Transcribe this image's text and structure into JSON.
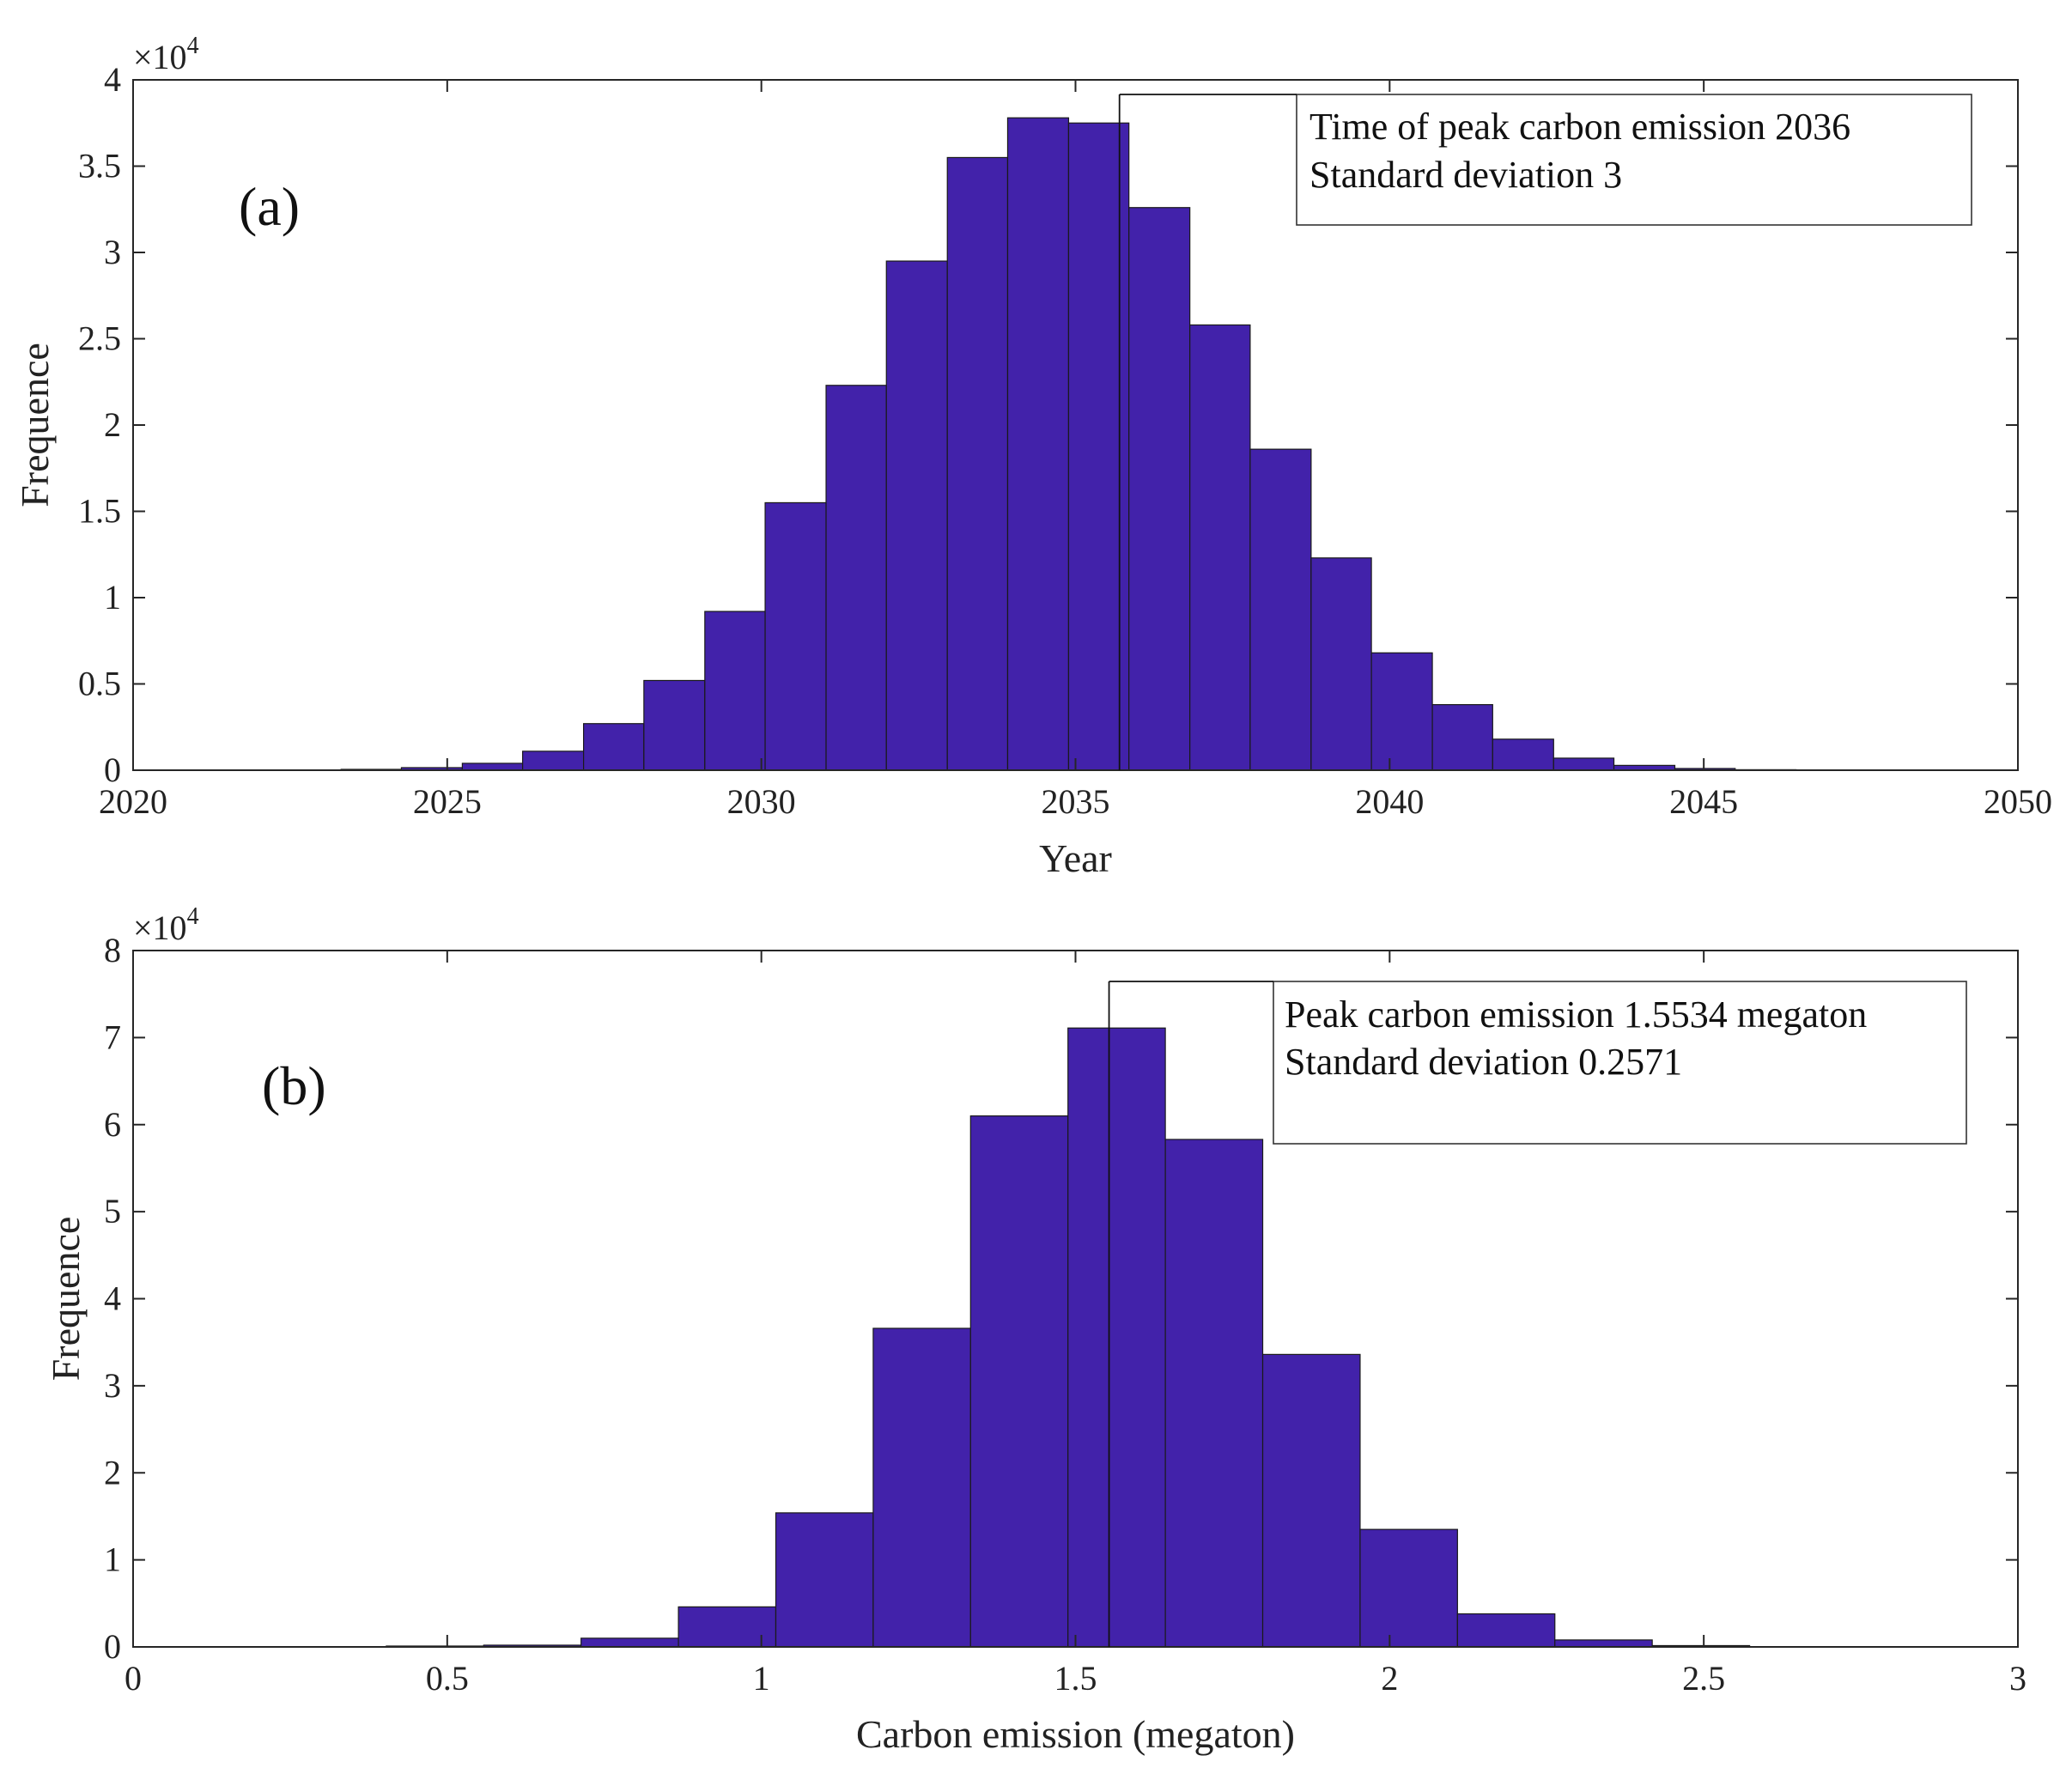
{
  "chart_data": [
    {
      "id": "a",
      "type": "bar",
      "panel_label": "(a)",
      "xlabel": "Year",
      "ylabel": "Frequence",
      "y_exponent_label": "×10",
      "y_exponent_power": "4",
      "xlim": [
        2020,
        2050
      ],
      "ylim": [
        0,
        40000
      ],
      "xticks": [
        2020,
        2025,
        2030,
        2035,
        2040,
        2045,
        2050
      ],
      "yticks": [
        0,
        5000,
        10000,
        15000,
        20000,
        25000,
        30000,
        35000,
        40000
      ],
      "ytick_labels": [
        "0",
        "0.5",
        "1",
        "1.5",
        "2",
        "2.5",
        "3",
        "3.5",
        "4"
      ],
      "bin_edges": [
        2019.45,
        2020.41,
        2021.38,
        2022.34,
        2023.31,
        2024.27,
        2025.24,
        2026.2,
        2027.17,
        2028.13,
        2029.1,
        2030.06,
        2031.03,
        2031.99,
        2032.96,
        2033.92,
        2034.89,
        2035.85,
        2036.82,
        2037.78,
        2038.75,
        2039.71,
        2040.68,
        2041.64,
        2042.61,
        2043.57,
        2044.54,
        2045.5,
        2046.47,
        2047.43,
        2048.4,
        2049.36
      ],
      "values": [
        0,
        0,
        0,
        20,
        50,
        150,
        400,
        1100,
        2700,
        5200,
        9200,
        15500,
        22300,
        29500,
        35500,
        37800,
        37500,
        32600,
        25800,
        18600,
        12300,
        6800,
        3800,
        1800,
        700,
        280,
        100,
        30,
        10,
        0,
        0
      ],
      "peak_x": 2035.7,
      "annotation": [
        "Time of peak carbon emission 2036",
        "Standard deviation 3"
      ],
      "bar_color": "#4222AA"
    },
    {
      "id": "b",
      "type": "bar",
      "panel_label": "(b)",
      "xlabel": "Carbon emission (megaton)",
      "ylabel": "Frequence",
      "y_exponent_label": "×10",
      "y_exponent_power": "4",
      "xlim": [
        0,
        3
      ],
      "ylim": [
        0,
        80000
      ],
      "xticks": [
        0,
        0.5,
        1,
        1.5,
        2,
        2.5,
        3
      ],
      "xtick_labels": [
        "0",
        "0.5",
        "1",
        "1.5",
        "2",
        "2.5",
        "3"
      ],
      "yticks": [
        0,
        10000,
        20000,
        30000,
        40000,
        50000,
        60000,
        70000,
        80000
      ],
      "ytick_labels": [
        "0",
        "1",
        "2",
        "3",
        "4",
        "5",
        "6",
        "7",
        "8"
      ],
      "bin_edges": [
        0.403,
        0.558,
        0.713,
        0.868,
        1.023,
        1.178,
        1.333,
        1.488,
        1.643,
        1.798,
        1.953,
        2.108,
        2.263,
        2.418,
        2.573
      ],
      "values": [
        100,
        200,
        1000,
        4600,
        15400,
        36600,
        61000,
        71100,
        58300,
        33600,
        13500,
        3800,
        800,
        150
      ],
      "peak_x": 1.5534,
      "annotation": [
        "Peak carbon emission 1.5534 megaton",
        "Standard deviation 0.2571"
      ],
      "bar_color": "#4222AA"
    }
  ]
}
